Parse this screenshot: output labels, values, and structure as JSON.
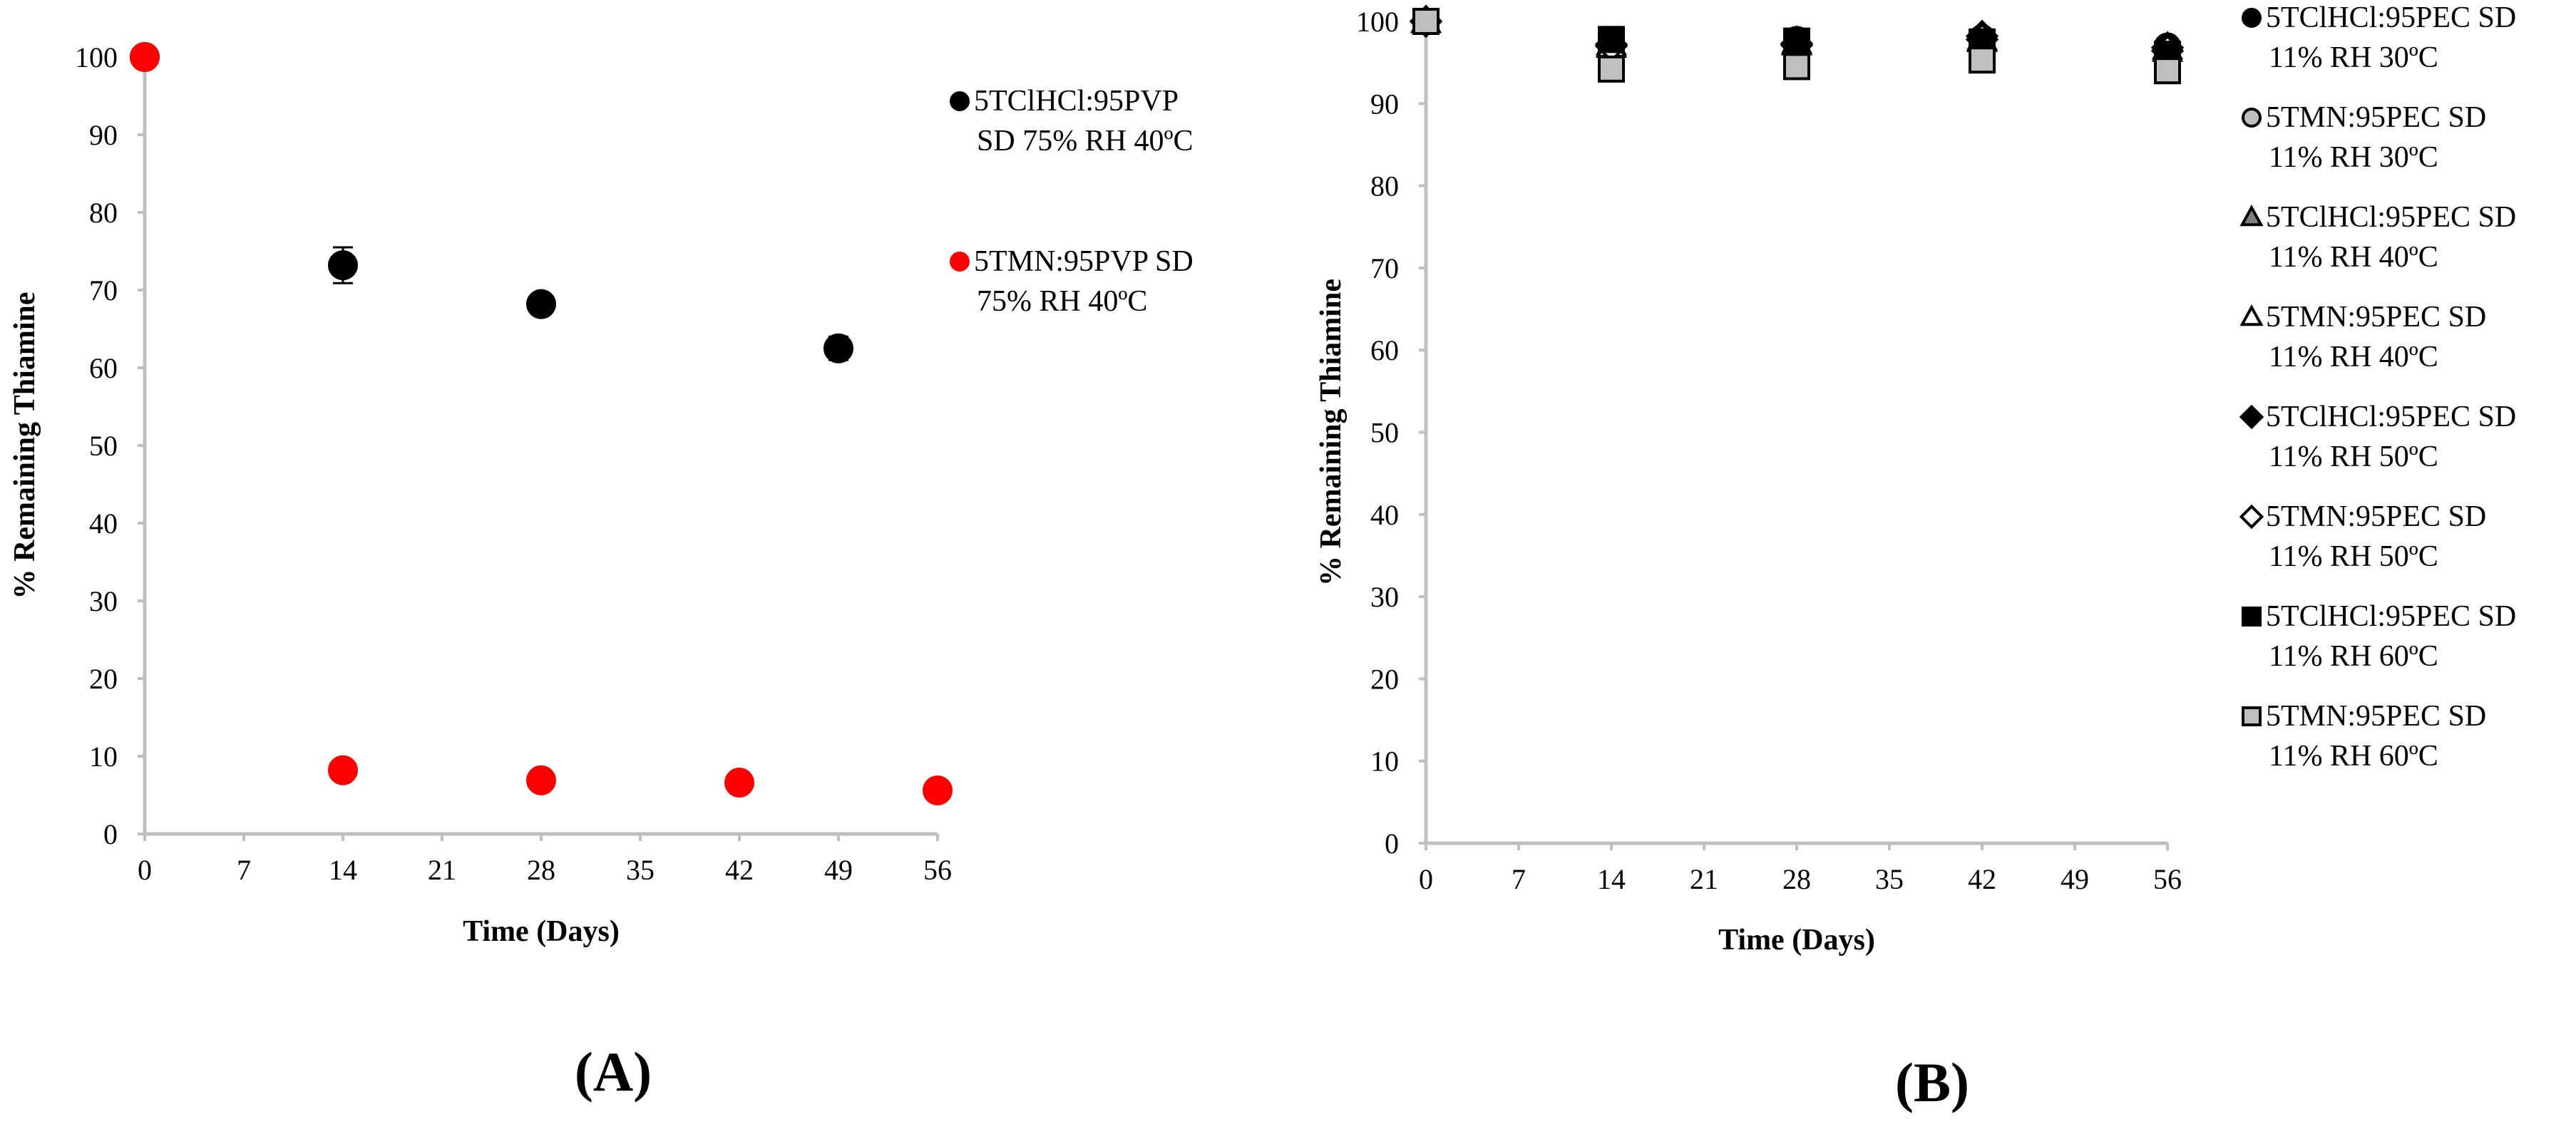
{
  "chart_data": [
    {
      "type": "scatter",
      "panel_label": "(A)",
      "xlabel": "Time (Days)",
      "ylabel": "% Remaining Thiamine",
      "xlim": [
        0,
        56
      ],
      "ylim": [
        0,
        100
      ],
      "xticks": [
        0,
        7,
        14,
        21,
        28,
        35,
        42,
        49,
        56
      ],
      "yticks": [
        0,
        10,
        20,
        30,
        40,
        50,
        60,
        70,
        80,
        90,
        100
      ],
      "grid": false,
      "legend_position": "right",
      "series": [
        {
          "name": [
            "5TClHCl:95PVP",
            "SD 75% RH 40ºC"
          ],
          "marker": "circle",
          "color": "#000000",
          "points": [
            {
              "x": 0,
              "y": 100
            },
            {
              "x": 14,
              "y": 73.2,
              "err": 2.3
            },
            {
              "x": 28,
              "y": 68.2,
              "err": 0.8
            },
            {
              "x": 49,
              "y": 62.5,
              "err": 1.5
            }
          ]
        },
        {
          "name": [
            "5TMN:95PVP SD",
            "75% RH 40ºC"
          ],
          "marker": "circle",
          "color": "#ff0000",
          "points": [
            {
              "x": 0,
              "y": 100
            },
            {
              "x": 14,
              "y": 8.2
            },
            {
              "x": 28,
              "y": 6.9
            },
            {
              "x": 42,
              "y": 6.6
            },
            {
              "x": 56,
              "y": 5.6
            }
          ]
        }
      ]
    },
    {
      "type": "scatter",
      "panel_label": "(B)",
      "xlabel": "Time (Days)",
      "ylabel": "% Remaining Thiamine",
      "xlim": [
        0,
        56
      ],
      "ylim": [
        0,
        100
      ],
      "xticks": [
        0,
        7,
        14,
        21,
        28,
        35,
        42,
        49,
        56
      ],
      "yticks": [
        0,
        10,
        20,
        30,
        40,
        50,
        60,
        70,
        80,
        90,
        100
      ],
      "grid": false,
      "legend_position": "right",
      "series": [
        {
          "name": [
            "5TClHCl:95PEC SD",
            "11% RH 30ºC"
          ],
          "marker": "circle",
          "fill": "#000000",
          "stroke": "#000000",
          "points": [
            {
              "x": 0,
              "y": 100
            },
            {
              "x": 14,
              "y": 97.5
            },
            {
              "x": 28,
              "y": 97.8
            },
            {
              "x": 42,
              "y": 98.0
            },
            {
              "x": 56,
              "y": 97.0
            }
          ]
        },
        {
          "name": [
            "5TMN:95PEC SD",
            "11% RH 30ºC"
          ],
          "marker": "circle",
          "fill": "#bfbfbf",
          "stroke": "#000000",
          "points": [
            {
              "x": 0,
              "y": 100
            },
            {
              "x": 14,
              "y": 97.2
            },
            {
              "x": 28,
              "y": 97.4
            },
            {
              "x": 42,
              "y": 97.6
            },
            {
              "x": 56,
              "y": 96.6
            }
          ]
        },
        {
          "name": [
            "5TClHCl:95PEC SD",
            "11% RH 40ºC"
          ],
          "marker": "triangle",
          "fill": "#7f7f7f",
          "stroke": "#000000",
          "points": [
            {
              "x": 0,
              "y": 100
            },
            {
              "x": 14,
              "y": 97.3
            },
            {
              "x": 28,
              "y": 97.5
            },
            {
              "x": 42,
              "y": 97.9
            },
            {
              "x": 56,
              "y": 96.8
            }
          ]
        },
        {
          "name": [
            "5TMN:95PEC SD",
            "11% RH 40ºC"
          ],
          "marker": "triangle",
          "fill": "#ffffff",
          "stroke": "#000000",
          "points": [
            {
              "x": 0,
              "y": 100
            },
            {
              "x": 14,
              "y": 97.0
            },
            {
              "x": 28,
              "y": 97.3
            },
            {
              "x": 42,
              "y": 97.7
            },
            {
              "x": 56,
              "y": 96.5
            }
          ]
        },
        {
          "name": [
            "5TClHCl:95PEC SD",
            "11% RH 50ºC"
          ],
          "marker": "diamond",
          "fill": "#000000",
          "stroke": "#000000",
          "points": [
            {
              "x": 0,
              "y": 100
            },
            {
              "x": 14,
              "y": 97.2
            },
            {
              "x": 28,
              "y": 97.3
            },
            {
              "x": 42,
              "y": 98.2
            },
            {
              "x": 56,
              "y": 96.8
            }
          ]
        },
        {
          "name": [
            "5TMN:95PEC SD",
            "11% RH 50ºC"
          ],
          "marker": "diamond",
          "fill": "#ffffff",
          "stroke": "#000000",
          "points": [
            {
              "x": 0,
              "y": 100
            },
            {
              "x": 14,
              "y": 97.0
            },
            {
              "x": 28,
              "y": 97.1
            },
            {
              "x": 42,
              "y": 97.8
            },
            {
              "x": 56,
              "y": 96.4
            }
          ]
        },
        {
          "name": [
            "5TClHCl:95PEC SD",
            "11% RH 60ºC"
          ],
          "marker": "square",
          "fill": "#000000",
          "stroke": "#000000",
          "points": [
            {
              "x": 0,
              "y": 100
            },
            {
              "x": 14,
              "y": 97.8
            },
            {
              "x": 28,
              "y": 97.6
            },
            {
              "x": 42,
              "y": 97.5
            },
            {
              "x": 56,
              "y": 96.0
            }
          ]
        },
        {
          "name": [
            "5TMN:95PEC SD",
            "11% RH 60ºC"
          ],
          "marker": "square",
          "fill": "#bfbfbf",
          "stroke": "#000000",
          "points": [
            {
              "x": 0,
              "y": 100
            },
            {
              "x": 14,
              "y": 94.2
            },
            {
              "x": 28,
              "y": 94.5
            },
            {
              "x": 42,
              "y": 95.3
            },
            {
              "x": 56,
              "y": 94.0
            }
          ]
        }
      ]
    }
  ]
}
